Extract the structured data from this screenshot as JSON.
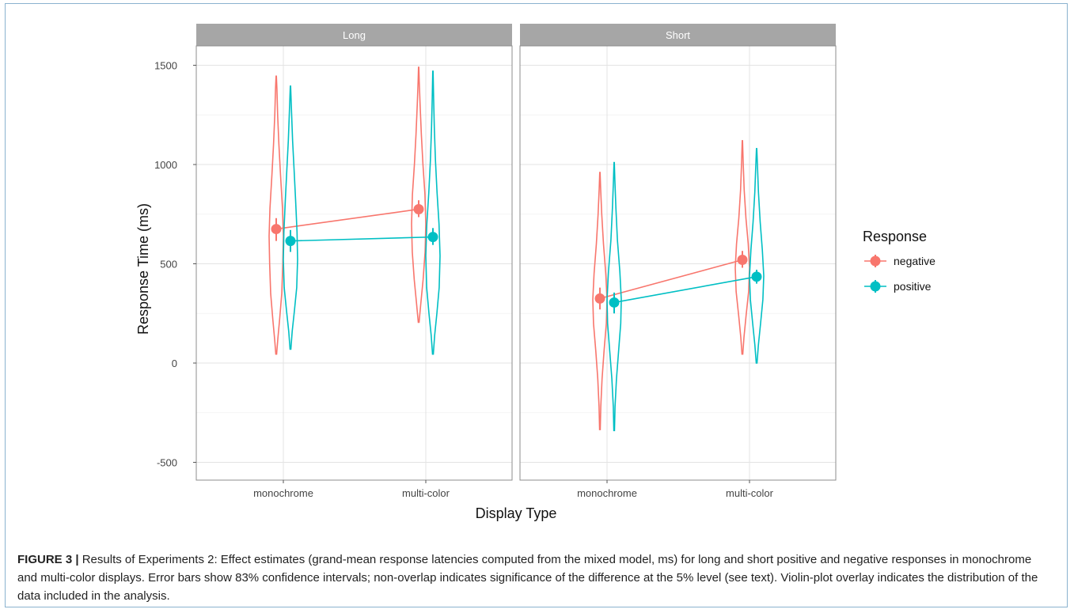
{
  "chart_data": {
    "type": "line",
    "title": "",
    "xlabel": "Display Type",
    "ylabel": "Response Time (ms)",
    "ylim": [
      -600,
      1700
    ],
    "y_ticks": [
      -500,
      0,
      500,
      1000,
      1500
    ],
    "y_tick_labels": [
      "-500",
      "0",
      "500",
      "1000",
      "1500"
    ],
    "grid": true,
    "legend_position": "right",
    "categories": [
      "monochrome",
      "multi-color"
    ],
    "facets": [
      {
        "name": "Long",
        "series": [
          {
            "name": "negative",
            "color": "#F8766D",
            "values": [
              675,
              775
            ],
            "ci": [
              [
                615,
                730
              ],
              [
                735,
                820
              ]
            ],
            "violins": [
              {
                "min": 45,
                "max": 1445,
                "profile": [
                  [
                    45,
                    0.06
                  ],
                  [
                    120,
                    0.22
                  ],
                  [
                    220,
                    0.48
                  ],
                  [
                    350,
                    0.78
                  ],
                  [
                    500,
                    0.92
                  ],
                  [
                    640,
                    1.0
                  ],
                  [
                    780,
                    0.88
                  ],
                  [
                    950,
                    0.6
                  ],
                  [
                    1100,
                    0.38
                  ],
                  [
                    1250,
                    0.2
                  ],
                  [
                    1380,
                    0.1
                  ],
                  [
                    1445,
                    0.02
                  ]
                ]
              },
              {
                "min": 205,
                "max": 1490,
                "profile": [
                  [
                    205,
                    0.06
                  ],
                  [
                    300,
                    0.3
                  ],
                  [
                    420,
                    0.62
                  ],
                  [
                    560,
                    0.9
                  ],
                  [
                    700,
                    1.0
                  ],
                  [
                    850,
                    0.88
                  ],
                  [
                    1000,
                    0.6
                  ],
                  [
                    1150,
                    0.38
                  ],
                  [
                    1300,
                    0.2
                  ],
                  [
                    1420,
                    0.08
                  ],
                  [
                    1490,
                    0.02
                  ]
                ]
              }
            ]
          },
          {
            "name": "positive",
            "color": "#00BFC4",
            "values": [
              615,
              635
            ],
            "ci": [
              [
                560,
                670
              ],
              [
                595,
                680
              ]
            ],
            "violins": [
              {
                "min": 70,
                "max": 1395,
                "profile": [
                  [
                    70,
                    0.06
                  ],
                  [
                    160,
                    0.24
                  ],
                  [
                    260,
                    0.55
                  ],
                  [
                    380,
                    0.88
                  ],
                  [
                    520,
                    1.0
                  ],
                  [
                    660,
                    0.92
                  ],
                  [
                    820,
                    0.72
                  ],
                  [
                    980,
                    0.5
                  ],
                  [
                    1120,
                    0.3
                  ],
                  [
                    1260,
                    0.16
                  ],
                  [
                    1395,
                    0.02
                  ]
                ]
              },
              {
                "min": 45,
                "max": 1470,
                "profile": [
                  [
                    45,
                    0.06
                  ],
                  [
                    140,
                    0.24
                  ],
                  [
                    250,
                    0.55
                  ],
                  [
                    380,
                    0.88
                  ],
                  [
                    540,
                    1.0
                  ],
                  [
                    700,
                    0.86
                  ],
                  [
                    860,
                    0.58
                  ],
                  [
                    1020,
                    0.36
                  ],
                  [
                    1180,
                    0.2
                  ],
                  [
                    1330,
                    0.1
                  ],
                  [
                    1470,
                    0.02
                  ]
                ]
              }
            ]
          }
        ]
      },
      {
        "name": "Short",
        "series": [
          {
            "name": "negative",
            "color": "#F8766D",
            "values": [
              325,
              520
            ],
            "ci": [
              [
                270,
                380
              ],
              [
                480,
                565
              ]
            ],
            "violins": [
              {
                "min": -335,
                "max": 960,
                "profile": [
                  [
                    -335,
                    0.04
                  ],
                  [
                    -220,
                    0.12
                  ],
                  [
                    -80,
                    0.3
                  ],
                  [
                    60,
                    0.58
                  ],
                  [
                    200,
                    0.9
                  ],
                  [
                    320,
                    1.0
                  ],
                  [
                    450,
                    0.82
                  ],
                  [
                    600,
                    0.5
                  ],
                  [
                    750,
                    0.26
                  ],
                  [
                    880,
                    0.1
                  ],
                  [
                    960,
                    0.02
                  ]
                ]
              },
              {
                "min": 45,
                "max": 1120,
                "profile": [
                  [
                    45,
                    0.06
                  ],
                  [
                    130,
                    0.22
                  ],
                  [
                    240,
                    0.52
                  ],
                  [
                    360,
                    0.88
                  ],
                  [
                    480,
                    1.0
                  ],
                  [
                    600,
                    0.82
                  ],
                  [
                    730,
                    0.5
                  ],
                  [
                    870,
                    0.26
                  ],
                  [
                    1000,
                    0.12
                  ],
                  [
                    1120,
                    0.02
                  ]
                ]
              }
            ]
          },
          {
            "name": "positive",
            "color": "#00BFC4",
            "values": [
              305,
              435
            ],
            "ci": [
              [
                250,
                355
              ],
              [
                400,
                470
              ]
            ],
            "violins": [
              {
                "min": -340,
                "max": 1010,
                "profile": [
                  [
                    -340,
                    0.04
                  ],
                  [
                    -220,
                    0.12
                  ],
                  [
                    -80,
                    0.32
                  ],
                  [
                    60,
                    0.62
                  ],
                  [
                    200,
                    0.92
                  ],
                  [
                    320,
                    1.0
                  ],
                  [
                    460,
                    0.8
                  ],
                  [
                    620,
                    0.46
                  ],
                  [
                    780,
                    0.24
                  ],
                  [
                    920,
                    0.1
                  ],
                  [
                    1010,
                    0.02
                  ]
                ]
              },
              {
                "min": 0,
                "max": 1080,
                "profile": [
                  [
                    0,
                    0.06
                  ],
                  [
                    90,
                    0.24
                  ],
                  [
                    200,
                    0.55
                  ],
                  [
                    320,
                    0.88
                  ],
                  [
                    440,
                    1.0
                  ],
                  [
                    570,
                    0.8
                  ],
                  [
                    710,
                    0.5
                  ],
                  [
                    860,
                    0.26
                  ],
                  [
                    990,
                    0.12
                  ],
                  [
                    1080,
                    0.02
                  ]
                ]
              }
            ]
          }
        ]
      }
    ],
    "legend": {
      "title": "Response",
      "items": [
        "negative",
        "positive"
      ]
    }
  },
  "caption": {
    "label": "FIGURE 3 |",
    "text": " Results of Experiments 2: Effect estimates (grand-mean response latencies computed from the mixed model, ms) for long and short positive and negative responses in monochrome and multi-color displays. Error bars show 83% confidence intervals; non-overlap indicates significance of the difference at the 5% level (see text). Violin-plot overlay indicates the distribution of the data included in the analysis."
  }
}
